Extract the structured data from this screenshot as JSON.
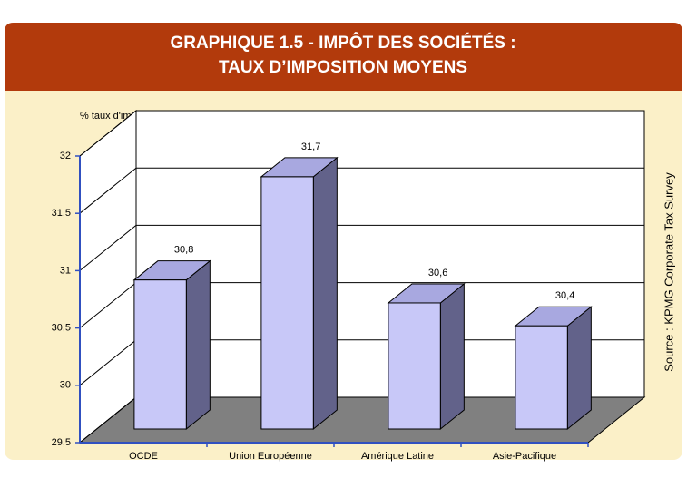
{
  "chart_data": {
    "type": "bar3d",
    "title": [
      "GRAPHIQUE 1.5 - IMPÔT DES SOCIÉTÉS :",
      "TAUX D’IMPOSITION MOYENS"
    ],
    "y_label": "% taux d'imposition",
    "source": "Source : KPMG Corporate Tax Survey",
    "categories": [
      "OCDE",
      "Union Européenne",
      "Amérique Latine",
      "Asie-Pacifique"
    ],
    "values": [
      30.8,
      31.7,
      30.6,
      30.4
    ],
    "value_labels": [
      "30,8",
      "31,7",
      "30,6",
      "30,4"
    ],
    "color": "#c8c8f8",
    "ylim": [
      29.5,
      32
    ],
    "yticks": [
      {
        "value": 29.5,
        "label": "29,5"
      },
      30,
      {
        "value": 30.5,
        "label": "30,5"
      },
      31,
      {
        "value": 31.5,
        "label": "31,5"
      },
      32
    ],
    "grid": true
  }
}
